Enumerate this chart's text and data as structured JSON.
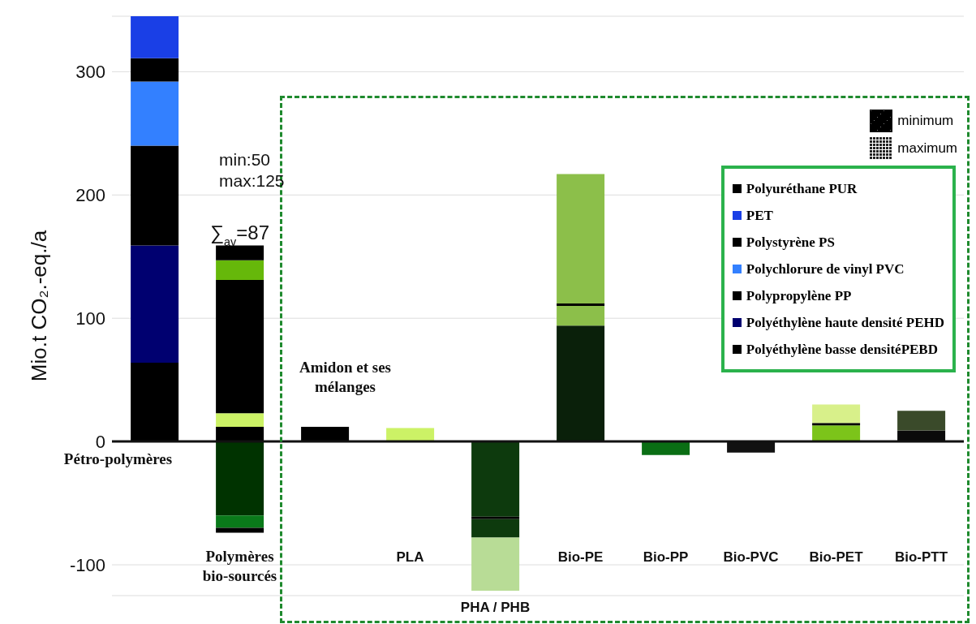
{
  "chart_data": {
    "type": "bar",
    "stacked": true,
    "ylabel": "Mio.t CO₂.-eq./a",
    "categories": [
      "Pétro-polymères",
      "Polymères bio-sourcés",
      "Amidon et ses mélanges",
      "PLA",
      "PHA / PHB",
      "Bio-PE",
      "Bio-PP",
      "Bio-PVC",
      "Bio-PET",
      "Bio-PTT"
    ],
    "series": [
      {
        "name": "Polyéthylène basse densitéPEBD",
        "color": "#000000",
        "values": [
          64,
          12,
          12,
          11,
          -61,
          94,
          -11,
          -9,
          13,
          9
        ],
        "colors": [
          "#000000",
          "#000000",
          "#000000",
          "#ccf266",
          "#0d3a0d",
          "#0a200a",
          "#0a6e14",
          "#111111",
          "#7cc41a",
          "#0a0a0a"
        ]
      },
      {
        "name": "Polyéthylène haute densité PEHD",
        "color": "#000070",
        "values": [
          95,
          11,
          null,
          null,
          -2,
          16,
          null,
          null,
          2,
          16
        ],
        "colors": [
          "#000070",
          "#ccf266",
          null,
          null,
          "#000000",
          "#8cbf4a",
          null,
          null,
          "#000000",
          "#3a4a2a"
        ]
      },
      {
        "name": "Polypropylène PP",
        "color": "#000000",
        "values": [
          81,
          108,
          null,
          null,
          -15,
          2,
          null,
          null,
          15,
          null
        ],
        "colors": [
          "#000000",
          "#000000",
          null,
          null,
          "#0d3a0d",
          "#000000",
          null,
          null,
          "#d8f08a",
          null
        ]
      },
      {
        "name": "Polychlorure de vinyl PVC",
        "color": "#3380ff",
        "values": [
          52,
          16,
          null,
          null,
          -43,
          105,
          null,
          null,
          null,
          null
        ],
        "colors": [
          "#3380ff",
          "#66b80a",
          null,
          null,
          "#b8dc96",
          "#8cbf4a",
          null,
          null,
          null,
          null
        ]
      },
      {
        "name": "Polystyrène PS",
        "color": "#000000",
        "values": [
          19,
          12,
          null,
          null,
          null,
          null,
          null,
          null,
          null,
          null
        ],
        "colors": [
          "#000000",
          "#000000",
          null,
          null,
          null,
          null,
          null,
          null,
          null,
          null
        ]
      },
      {
        "name": "PET",
        "color": "#1a3fe6",
        "values": [
          34,
          -60,
          null,
          null,
          null,
          null,
          null,
          null,
          null,
          null
        ],
        "colors": [
          "#1a3fe6",
          "#003300",
          null,
          null,
          null,
          null,
          null,
          null,
          null,
          null
        ]
      },
      {
        "name": "Polyuréthane PUR",
        "color": "#000000",
        "values": [
          null,
          null,
          null,
          null,
          null,
          null,
          null,
          null,
          null,
          null
        ]
      },
      {
        "color": "#0a7a1a",
        "values": [
          null,
          -10,
          null,
          null,
          null,
          null,
          null,
          null,
          null,
          null
        ]
      },
      {
        "color": "#000000",
        "values": [
          null,
          -4,
          null,
          null,
          null,
          null,
          null,
          null,
          null,
          null
        ]
      }
    ],
    "ylim": [
      -125,
      345
    ],
    "yticks": [
      -100,
      0,
      100,
      200,
      300
    ],
    "grid": "y",
    "legend": "top right",
    "annotations": [
      "minimum",
      "maximum",
      "min:50",
      "max:125",
      {
        "text": "∑$_{av}$=87",
        "x": "Polymères bio-sourcés",
        "y": 160
      }
    ]
  }
}
